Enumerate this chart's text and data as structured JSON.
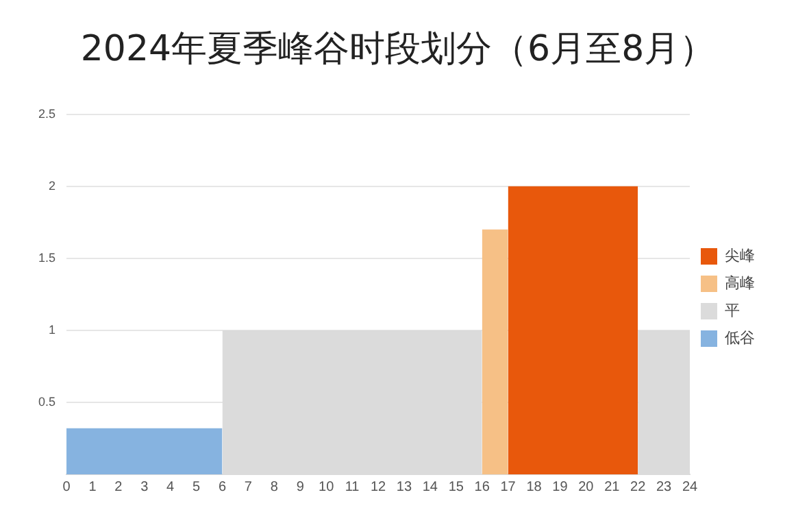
{
  "chart_data": {
    "type": "area",
    "title": "2024年夏季峰谷时段划分（6月至8月）",
    "series": [
      {
        "name": "尖峰",
        "color": "#e8580c",
        "x": [
          17,
          22
        ],
        "values": [
          2,
          2
        ]
      },
      {
        "name": "高峰",
        "color": "#f6c086",
        "x": [
          16,
          17
        ],
        "values": [
          1.7,
          1.7
        ]
      },
      {
        "name": "平",
        "color": "#dbdbdb",
        "x": [
          6,
          16,
          19,
          22,
          24
        ],
        "values": [
          1,
          1,
          null,
          1,
          1
        ]
      },
      {
        "name": "低谷",
        "color": "#86b3e0",
        "x": [
          0,
          6
        ],
        "values": [
          0.32,
          0.32
        ]
      }
    ],
    "xlim": [
      0,
      24
    ],
    "xticks": [
      0,
      1,
      2,
      3,
      4,
      5,
      6,
      7,
      8,
      9,
      10,
      11,
      12,
      13,
      14,
      15,
      16,
      17,
      18,
      19,
      20,
      21,
      22,
      23,
      24
    ],
    "ylim": [
      0,
      2.5
    ],
    "yticks": [
      {
        "value": 0,
        "label": null
      },
      0.5,
      1,
      1.5,
      2,
      2.5
    ],
    "grid": "y",
    "legend": "right",
    "marker": "none"
  }
}
